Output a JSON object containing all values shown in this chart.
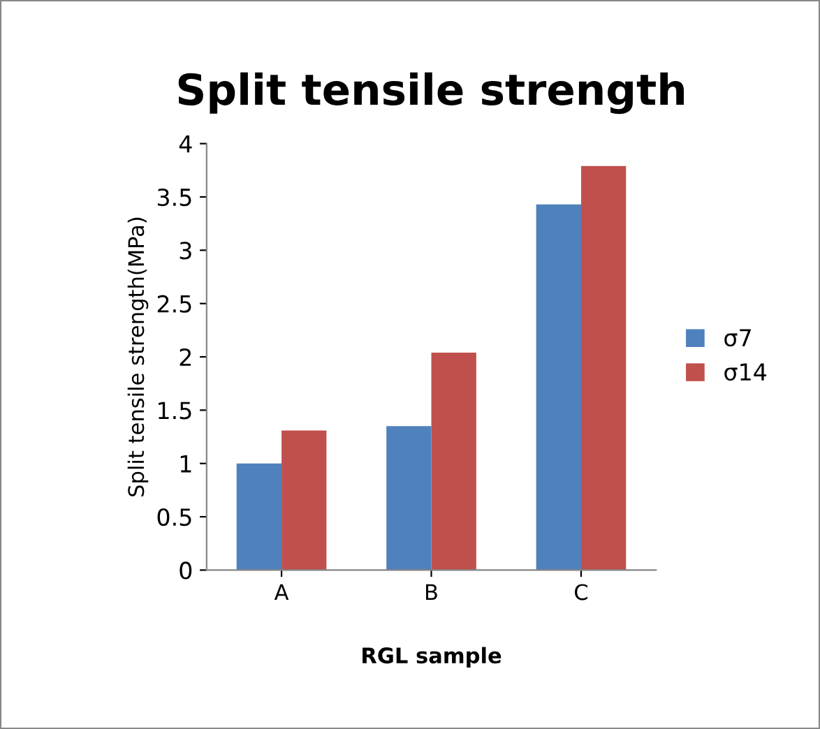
{
  "chart_data": {
    "type": "bar",
    "title": "Split tensile strength",
    "xlabel": "RGL sample",
    "ylabel": "Split tensile strength(MPa)",
    "categories": [
      "A",
      "B",
      "C"
    ],
    "series": [
      {
        "name": "σ7",
        "color": "#4f81bd",
        "values": [
          1.0,
          1.35,
          3.43
        ]
      },
      {
        "name": "σ14",
        "color": "#c0504d",
        "values": [
          1.31,
          2.04,
          3.79
        ]
      }
    ],
    "ylim": [
      0,
      4
    ],
    "yticks": [
      0,
      0.5,
      1,
      1.5,
      2,
      2.5,
      3,
      3.5,
      4
    ],
    "grid": false,
    "legend": "right"
  }
}
